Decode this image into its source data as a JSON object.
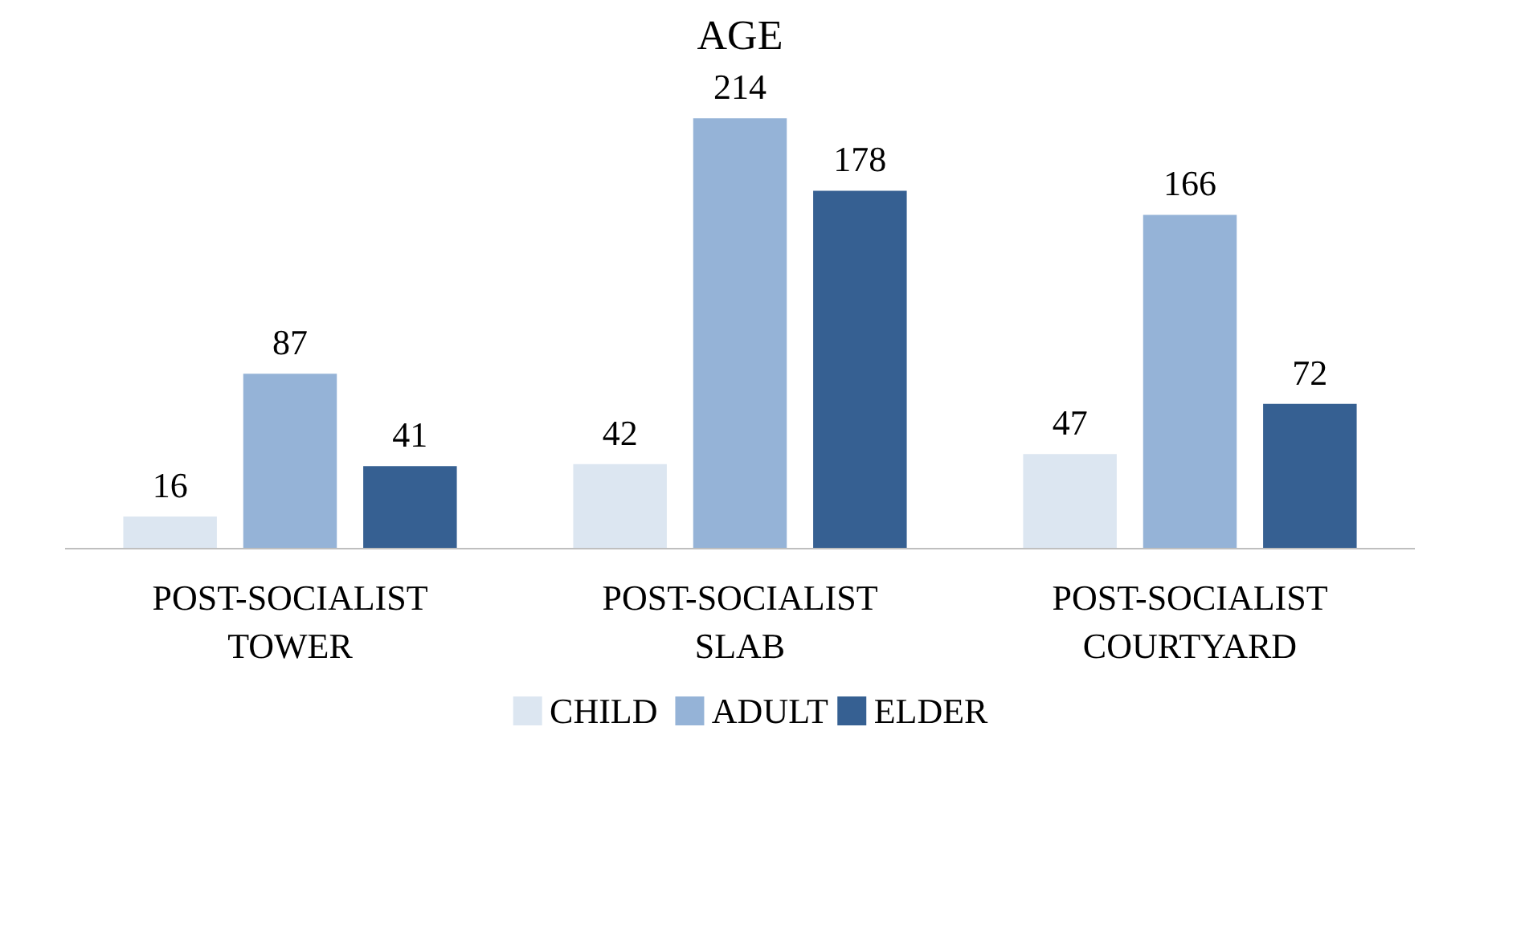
{
  "chart_data": {
    "type": "bar",
    "title": "AGE",
    "categories": [
      "POST-SOCIALIST TOWER",
      "POST-SOCIALIST SLAB",
      "POST-SOCIALIST COURTYARD"
    ],
    "series": [
      {
        "name": "CHILD",
        "color": "#dce6f1",
        "values": [
          16,
          42,
          47
        ]
      },
      {
        "name": "ADULT",
        "color": "#95b3d7",
        "values": [
          87,
          214,
          166
        ]
      },
      {
        "name": "ELDER",
        "color": "#366092",
        "values": [
          41,
          178,
          72
        ]
      }
    ],
    "data_labels": true,
    "legend": "bottom"
  }
}
